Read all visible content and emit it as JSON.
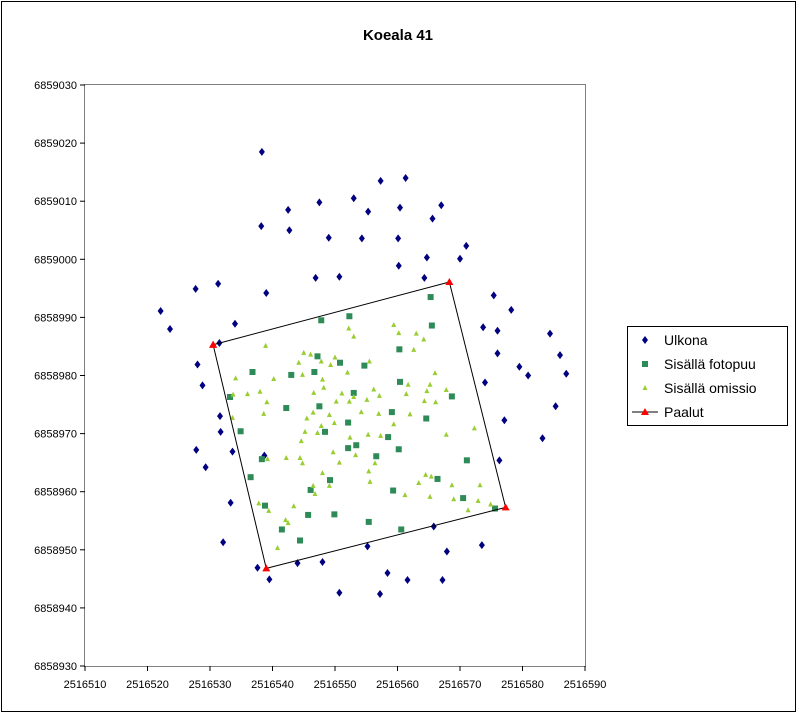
{
  "chart_data": {
    "type": "scatter",
    "title": "Koeala 41",
    "xlabel": "",
    "ylabel": "",
    "xlim": [
      2516510,
      2516590
    ],
    "ylim": [
      6858930,
      6859030
    ],
    "xticks": [
      "2516510",
      "2516520",
      "2516530",
      "2516540",
      "2516550",
      "2516560",
      "2516570",
      "2516580",
      "2516590"
    ],
    "yticks": [
      "6858930",
      "6858940",
      "6858950",
      "6858960",
      "6858970",
      "6858980",
      "6858990",
      "6859000",
      "6859010",
      "6859020",
      "6859030"
    ],
    "grid": false,
    "legend_position": "right",
    "series": [
      {
        "name": "Ulkona",
        "color": "#000080",
        "marker": "diamond",
        "points": [
          [
            2516538.3,
            6859018.5
          ],
          [
            2516557.3,
            6859013.5
          ],
          [
            2516561.3,
            6859014
          ],
          [
            2516553,
            6859010.5
          ],
          [
            2516547.5,
            6859009.8
          ],
          [
            2516542.5,
            6859008.5
          ],
          [
            2516555.3,
            6859008.2
          ],
          [
            2516560.4,
            6859008.9
          ],
          [
            2516565.6,
            6859007
          ],
          [
            2516567,
            6859009.3
          ],
          [
            2516538.2,
            6859005.7
          ],
          [
            2516542.7,
            6859005
          ],
          [
            2516549,
            6859003.7
          ],
          [
            2516554.3,
            6859003.6
          ],
          [
            2516560.1,
            6859003.6
          ],
          [
            2516571,
            6859002.3
          ],
          [
            2516564.7,
            6859000.3
          ],
          [
            2516570,
            6859000.1
          ],
          [
            2516560.2,
            6858998.9
          ],
          [
            2516546.9,
            6858996.8
          ],
          [
            2516550.7,
            6858997
          ],
          [
            2516564.3,
            6858996.8
          ],
          [
            2516531.3,
            6858995.8
          ],
          [
            2516527.7,
            6858994.9
          ],
          [
            2516539,
            6858994.2
          ],
          [
            2516575.4,
            6858993.8
          ],
          [
            2516578.2,
            6858991.3
          ],
          [
            2516522.1,
            6858991.1
          ],
          [
            2516534,
            6858988.9
          ],
          [
            2516523.6,
            6858988
          ],
          [
            2516573.7,
            6858988.3
          ],
          [
            2516576,
            6858987.7
          ],
          [
            2516584.4,
            6858987.2
          ],
          [
            2516531.5,
            6858985.6
          ],
          [
            2516576,
            6858983.8
          ],
          [
            2516586,
            6858983.5
          ],
          [
            2516528,
            6858981.9
          ],
          [
            2516580.9,
            6858980
          ],
          [
            2516587,
            6858980.3
          ],
          [
            2516528.8,
            6858978.3
          ],
          [
            2516574,
            6858978.8
          ],
          [
            2516579.5,
            6858981.5
          ],
          [
            2516531.6,
            6858973
          ],
          [
            2516585.3,
            6858974.7
          ],
          [
            2516577.1,
            6858972.3
          ],
          [
            2516531.7,
            6858970.3
          ],
          [
            2516533.6,
            6858966.9
          ],
          [
            2516583.2,
            6858969.2
          ],
          [
            2516527.8,
            6858967.2
          ],
          [
            2516576.3,
            6858965.4
          ],
          [
            2516529.3,
            6858964.2
          ],
          [
            2516538.7,
            6858966.2
          ],
          [
            2516533.3,
            6858958.1
          ],
          [
            2516532.1,
            6858951.3
          ],
          [
            2516555.2,
            6858950.6
          ],
          [
            2516565.8,
            6858954
          ],
          [
            2516573.5,
            6858950.8
          ],
          [
            2516567.9,
            6858949.7
          ],
          [
            2516537.6,
            6858946.9
          ],
          [
            2516544,
            6858947.7
          ],
          [
            2516548,
            6858947.9
          ],
          [
            2516558.4,
            6858946
          ],
          [
            2516539.5,
            6858944.9
          ],
          [
            2516561.6,
            6858944.8
          ],
          [
            2516567.2,
            6858944.8
          ],
          [
            2516550.7,
            6858942.6
          ],
          [
            2516557.2,
            6858942.4
          ]
        ]
      },
      {
        "name": "Sisällä fotopuu",
        "color": "#2E8B57",
        "marker": "square",
        "points": [
          [
            2516565.3,
            6858993.5
          ],
          [
            2516547.8,
            6858989.5
          ],
          [
            2516552.3,
            6858990.2
          ],
          [
            2516565.5,
            6858988.6
          ],
          [
            2516560.3,
            6858984.5
          ],
          [
            2516547.2,
            6858983.3
          ],
          [
            2516550.8,
            6858982.2
          ],
          [
            2516554.7,
            6858981.7
          ],
          [
            2516536.8,
            6858980.6
          ],
          [
            2516543,
            6858980.1
          ],
          [
            2516546.7,
            6858980.6
          ],
          [
            2516560.4,
            6858978.9
          ],
          [
            2516553,
            6858977
          ],
          [
            2516533.2,
            6858976.3
          ],
          [
            2516568.7,
            6858976.4
          ],
          [
            2516542.2,
            6858974.4
          ],
          [
            2516547.5,
            6858974.7
          ],
          [
            2516559.1,
            6858973.7
          ],
          [
            2516564.6,
            6858972.6
          ],
          [
            2516552.1,
            6858971.9
          ],
          [
            2516534.9,
            6858970.4
          ],
          [
            2516548.4,
            6858970.3
          ],
          [
            2516558.5,
            6858969.4
          ],
          [
            2516553.4,
            6858968
          ],
          [
            2516552.1,
            6858967.5
          ],
          [
            2516560.2,
            6858967.3
          ],
          [
            2516556.6,
            6858966.1
          ],
          [
            2516538.3,
            6858965.6
          ],
          [
            2516571.1,
            6858965.4
          ],
          [
            2516536.5,
            6858962.5
          ],
          [
            2516566.4,
            6858962.2
          ],
          [
            2516549.2,
            6858962
          ],
          [
            2516546.1,
            6858960.3
          ],
          [
            2516559.3,
            6858960.2
          ],
          [
            2516570.5,
            6858958.9
          ],
          [
            2516538.8,
            6858957.6
          ],
          [
            2516575.6,
            6858957.1
          ],
          [
            2516545.7,
            6858956
          ],
          [
            2516549.9,
            6858956.1
          ],
          [
            2516555.4,
            6858954.8
          ],
          [
            2516541.5,
            6858953.5
          ],
          [
            2516560.6,
            6858953.5
          ],
          [
            2516544.4,
            6858951.6
          ]
        ]
      },
      {
        "name": "Sisällä omissio",
        "color": "#9ACD32",
        "marker": "triangle",
        "points": [
          [
            2516552.2,
            6858988.1
          ],
          [
            2516559.4,
            6858988.7
          ],
          [
            2516560.2,
            6858987.3
          ],
          [
            2516553,
            6858986.7
          ],
          [
            2516563,
            6858987.2
          ],
          [
            2516538.9,
            6858985.1
          ],
          [
            2516564.2,
            6858986.2
          ],
          [
            2516562.6,
            6858984.4
          ],
          [
            2516545,
            6858983.9
          ],
          [
            2516546.1,
            6858983.6
          ],
          [
            2516550,
            6858983.1
          ],
          [
            2516555.5,
            6858982.4
          ],
          [
            2516544.2,
            6858982.2
          ],
          [
            2516547.8,
            6858982.4
          ],
          [
            2516549.3,
            6858981.8
          ],
          [
            2516552,
            6858980.5
          ],
          [
            2516544.8,
            6858980.1
          ],
          [
            2516566,
            6858980.4
          ],
          [
            2516540.2,
            6858979.4
          ],
          [
            2516534.1,
            6858979.5
          ],
          [
            2516548,
            6858979.3
          ],
          [
            2516561.7,
            6858978.4
          ],
          [
            2516565.2,
            6858978.4
          ],
          [
            2516548.2,
            6858977.9
          ],
          [
            2516556.2,
            6858977.6
          ],
          [
            2516564.7,
            6858977.3
          ],
          [
            2516567.8,
            6858977.5
          ],
          [
            2516533.7,
            6858976.7
          ],
          [
            2516536,
            6858976.8
          ],
          [
            2516538,
            6858977.2
          ],
          [
            2516546.6,
            6858977
          ],
          [
            2516551.1,
            6858976.9
          ],
          [
            2516553,
            6858976.3
          ],
          [
            2516557.1,
            6858976.5
          ],
          [
            2516561.4,
            6858976.8
          ],
          [
            2516539.1,
            6858975.4
          ],
          [
            2516550.2,
            6858975.5
          ],
          [
            2516552.3,
            6858975.5
          ],
          [
            2516555.1,
            6858975.8
          ],
          [
            2516564.3,
            6858975.6
          ],
          [
            2516566.1,
            6858975.4
          ],
          [
            2516538.6,
            6858973.4
          ],
          [
            2516546.5,
            6858973.6
          ],
          [
            2516549.1,
            6858973.2
          ],
          [
            2516554.2,
            6858973.7
          ],
          [
            2516557,
            6858973.4
          ],
          [
            2516562,
            6858973.3
          ],
          [
            2516545.5,
            6858972.6
          ],
          [
            2516533.6,
            6858972.7
          ],
          [
            2516547.8,
            6858971.3
          ],
          [
            2516549.9,
            6858971.8
          ],
          [
            2516559.4,
            6858971.6
          ],
          [
            2516572.3,
            6858970.9
          ],
          [
            2516545.2,
            6858970.3
          ],
          [
            2516547.2,
            6858970.1
          ],
          [
            2516555.3,
            6858969.8
          ],
          [
            2516557.3,
            6858969.6
          ],
          [
            2516567.8,
            6858969.8
          ],
          [
            2516552.4,
            6858969.3
          ],
          [
            2516544.6,
            6858968.7
          ],
          [
            2516549.7,
            6858966.8
          ],
          [
            2516553.3,
            6858966.3
          ],
          [
            2516539.2,
            6858965.6
          ],
          [
            2516542.2,
            6858965.8
          ],
          [
            2516544.4,
            6858965.8
          ],
          [
            2516550.7,
            6858965
          ],
          [
            2516556.4,
            6858964.9
          ],
          [
            2516544.8,
            6858964.9
          ],
          [
            2516548,
            6858963.2
          ],
          [
            2516555.4,
            6858963.5
          ],
          [
            2516564.5,
            6858962.9
          ],
          [
            2516565.4,
            6858962.6
          ],
          [
            2516546.5,
            6858961
          ],
          [
            2516555.6,
            6858961.7
          ],
          [
            2516549.1,
            6858961
          ],
          [
            2516568.7,
            6858961.1
          ],
          [
            2516573.2,
            6858961.1
          ],
          [
            2516546.8,
            6858959.6
          ],
          [
            2516561.2,
            6858959.4
          ],
          [
            2516565.2,
            6858959.1
          ],
          [
            2516569,
            6858958.7
          ],
          [
            2516537.8,
            6858958
          ],
          [
            2516543.4,
            6858957.5
          ],
          [
            2516571.3,
            6858956.8
          ],
          [
            2516574.9,
            6858957.8
          ],
          [
            2516539.4,
            6858956.7
          ],
          [
            2516542.1,
            6858955.1
          ],
          [
            2516542.5,
            6858954.6
          ],
          [
            2516540.8,
            6858950.3
          ],
          [
            2516572.9,
            6858958.4
          ],
          [
            2516563.4,
            6858961.5
          ]
        ]
      },
      {
        "name": "Paalut",
        "color": "#FF0000",
        "marker": "triangle-line",
        "line_color": "#000000",
        "points": [
          [
            2516530.5,
            6858985.3
          ],
          [
            2516568.3,
            6858996.1
          ],
          [
            2516577.3,
            6858957.3
          ],
          [
            2516539,
            6858946.8
          ],
          [
            2516530.5,
            6858985.3
          ]
        ]
      }
    ]
  }
}
